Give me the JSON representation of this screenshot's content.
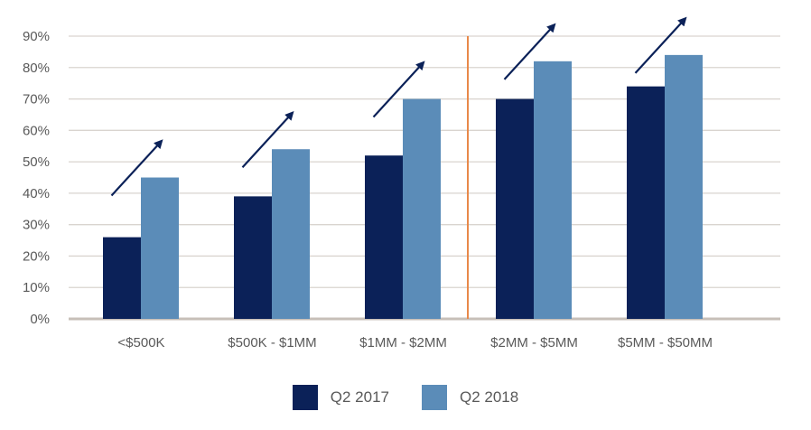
{
  "chart_data": {
    "type": "bar",
    "title": "",
    "xlabel": "",
    "ylabel": "",
    "ylim": [
      0,
      0.9
    ],
    "yticks": [
      0,
      0.1,
      0.2,
      0.3,
      0.4,
      0.5,
      0.6,
      0.7,
      0.8,
      0.9
    ],
    "ytick_labels": [
      "0%",
      "10%",
      "20%",
      "30%",
      "40%",
      "50%",
      "60%",
      "70%",
      "80%",
      "90%"
    ],
    "grid": true,
    "legend_position": "bottom-center",
    "categories": [
      "<$500K",
      "$500K - $1MM",
      "$1MM - $2MM",
      "$2MM - $5MM",
      "$5MM - $50MM"
    ],
    "series": [
      {
        "name": "Q2 2017",
        "color": "#0b2158",
        "values": [
          0.26,
          0.39,
          0.52,
          0.7,
          0.74
        ]
      },
      {
        "name": "Q2 2018",
        "color": "#5b8cb8",
        "values": [
          0.45,
          0.54,
          0.7,
          0.82,
          0.84
        ]
      }
    ],
    "annotations": {
      "trend_arrows": "increase arrow over each category",
      "arrow_color": "#0b2158",
      "divider": {
        "between_categories": [
          "$1MM - $2MM",
          "$2MM - $5MM"
        ],
        "color": "#e8894a"
      }
    },
    "grid_color": "#d9d4cf",
    "axis_color": "#c7bfb8"
  }
}
